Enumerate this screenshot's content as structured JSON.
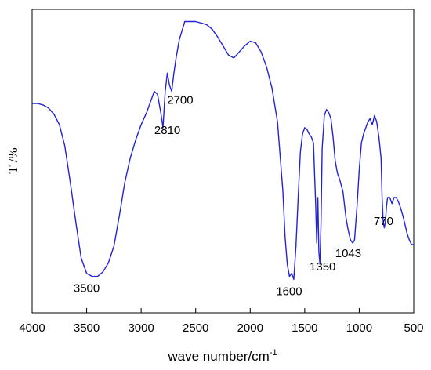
{
  "chart_data": {
    "type": "line",
    "title": "",
    "xlabel": "wave number/cm",
    "xlabel_superscript": "-1",
    "ylabel": "T /%",
    "xlim": [
      4000,
      500
    ],
    "ylim": [
      0,
      100
    ],
    "x_reversed": true,
    "x_ticks": [
      4000,
      3500,
      3000,
      2500,
      2000,
      1500,
      1000,
      500
    ],
    "x_tick_labels": [
      "4000",
      "3500",
      "3000",
      "2500",
      "2000",
      "1500",
      "1000",
      "500"
    ],
    "y_tick_labels_shown": false,
    "grid": false,
    "line_color": "#2323d6",
    "series": [
      {
        "x": [
          4000,
          3950,
          3900,
          3850,
          3800,
          3750,
          3700,
          3650,
          3600,
          3550,
          3500,
          3450,
          3400,
          3350,
          3300,
          3250,
          3200,
          3150,
          3100,
          3050,
          3000,
          2950,
          2900,
          2880,
          2850,
          2820,
          2800,
          2780,
          2760,
          2740,
          2720,
          2700,
          2680,
          2650,
          2600,
          2550,
          2500,
          2450,
          2400,
          2350,
          2300,
          2250,
          2200,
          2150,
          2100,
          2050,
          2000,
          1950,
          1900,
          1850,
          1800,
          1750,
          1700,
          1680,
          1660,
          1640,
          1620,
          1600,
          1580,
          1560,
          1540,
          1520,
          1500,
          1480,
          1460,
          1440,
          1420,
          1400,
          1390,
          1380,
          1370,
          1360,
          1350,
          1340,
          1320,
          1300,
          1280,
          1260,
          1240,
          1220,
          1200,
          1180,
          1150,
          1120,
          1100,
          1080,
          1060,
          1043,
          1020,
          1000,
          980,
          960,
          940,
          920,
          900,
          880,
          860,
          840,
          820,
          800,
          790,
          780,
          770,
          760,
          750,
          740,
          720,
          700,
          680,
          660,
          640,
          620,
          600,
          580,
          560,
          540,
          520,
          500
        ],
        "y": [
          69,
          69,
          68.5,
          67.5,
          65.5,
          62,
          55,
          43,
          30,
          18,
          13,
          12,
          12,
          13.5,
          16.5,
          22,
          32,
          43,
          51,
          57,
          62,
          66,
          71,
          73,
          72,
          66,
          61,
          73,
          79,
          75,
          73,
          79,
          84,
          90,
          96,
          96,
          96,
          95.5,
          95,
          93.5,
          91,
          88,
          85,
          84,
          86,
          88,
          89.5,
          89,
          86,
          81,
          74,
          63,
          40,
          25,
          16,
          12,
          13,
          11,
          22,
          38,
          53,
          59,
          61,
          60.5,
          59,
          58,
          56,
          36,
          23,
          38,
          20,
          16,
          30,
          54,
          65,
          67,
          66,
          64,
          58,
          50,
          46,
          44,
          40,
          31,
          27,
          24,
          23,
          24,
          35,
          47,
          56,
          59,
          61,
          63,
          64,
          62,
          65,
          63,
          58,
          51,
          38,
          30,
          28,
          30,
          35,
          38,
          38,
          36,
          38,
          38,
          36.5,
          34.5,
          32,
          29,
          26,
          24,
          22.5,
          22.5
        ]
      }
    ],
    "annotations": [
      {
        "text": "3500",
        "x": 3500,
        "y": 12
      },
      {
        "text": "2810",
        "x": 2810,
        "y": 61
      },
      {
        "text": "2700",
        "x": 2700,
        "y": 73
      },
      {
        "text": "1600",
        "x": 1600,
        "y": 11
      },
      {
        "text": "1350",
        "x": 1350,
        "y": 16
      },
      {
        "text": "1043",
        "x": 1043,
        "y": 23
      },
      {
        "text": "770",
        "x": 770,
        "y": 30
      }
    ]
  }
}
